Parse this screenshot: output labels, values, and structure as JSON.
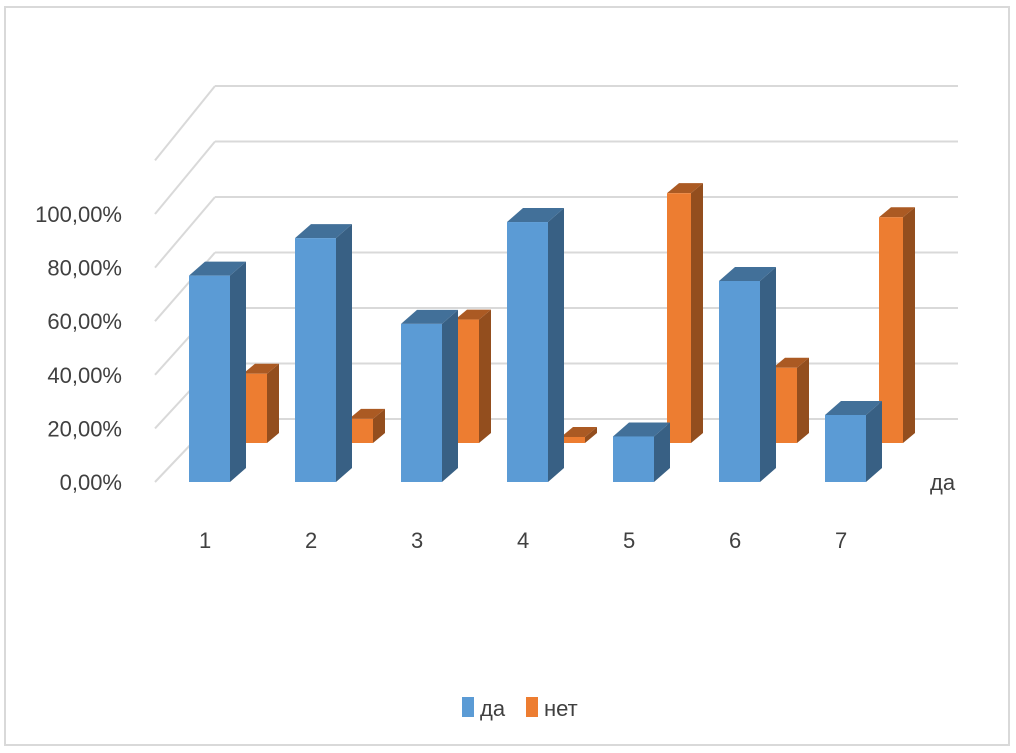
{
  "chart_data": {
    "type": "bar",
    "subtype": "3d-column",
    "title": "",
    "categories": [
      "1",
      "2",
      "3",
      "4",
      "5",
      "6",
      "7"
    ],
    "series": [
      {
        "name": "да",
        "values": [
          0.77,
          0.91,
          0.59,
          0.97,
          0.17,
          0.75,
          0.25
        ],
        "color": "#5B9BD5"
      },
      {
        "name": "нет",
        "values": [
          0.23,
          0.08,
          0.41,
          0.02,
          0.83,
          0.25,
          0.75
        ],
        "color": "#ED7D31"
      }
    ],
    "depth_label": "да",
    "y_tick_labels": [
      "0,00%",
      "20,00%",
      "40,00%",
      "60,00%",
      "80,00%",
      "100,00%"
    ],
    "ylim": [
      0,
      1
    ],
    "grid": true,
    "legend": {
      "position": "bottom",
      "items": [
        "да",
        "нет"
      ]
    }
  }
}
